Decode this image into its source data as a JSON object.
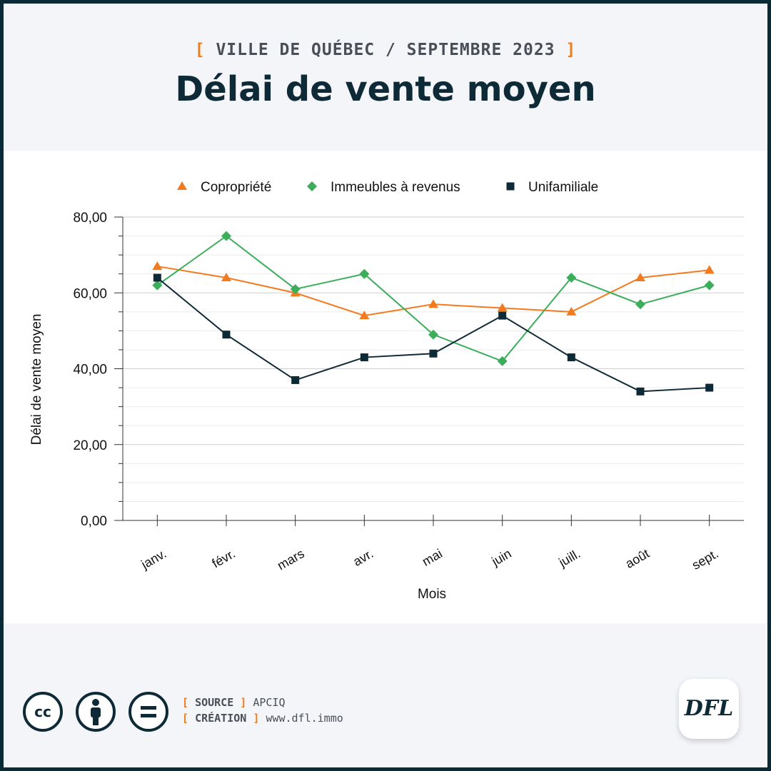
{
  "header": {
    "kicker_open": "[",
    "kicker_text": "VILLE DE QUÉBEC / SEPTEMBRE 2023",
    "kicker_close": "]",
    "title": "Délai de vente moyen"
  },
  "colors": {
    "accent": "#ee7d1c",
    "dark": "#0d2a36",
    "copropriete": "#f47a1f",
    "immeubles": "#3cae5a",
    "unifamiliale": "#0d2a36"
  },
  "chart_data": {
    "type": "line",
    "categories": [
      "janv.",
      "févr.",
      "mars",
      "avr.",
      "mai",
      "juin",
      "juill.",
      "août",
      "sept."
    ],
    "series": [
      {
        "name": "Copropriété",
        "marker": "triangle",
        "color": "#f47a1f",
        "values": [
          67,
          64,
          60,
          54,
          57,
          56,
          55,
          64,
          66
        ]
      },
      {
        "name": "Immeubles à revenus",
        "marker": "diamond",
        "color": "#3cae5a",
        "values": [
          62,
          75,
          61,
          65,
          49,
          42,
          64,
          57,
          62
        ]
      },
      {
        "name": "Unifamiliale",
        "marker": "square",
        "color": "#0d2a36",
        "values": [
          64,
          49,
          37,
          43,
          44,
          54,
          43,
          34,
          35
        ]
      }
    ],
    "xlabel": "Mois",
    "ylabel": "Délai de vente moyen",
    "ylim": [
      0,
      80
    ],
    "yticks": [
      "0,00",
      "20,00",
      "40,00",
      "60,00",
      "80,00"
    ],
    "grid": true,
    "legend_position": "top-center"
  },
  "footer": {
    "license_icons": [
      "cc-icon",
      "by-person-icon",
      "nd-equals-icon"
    ],
    "source_label": "SOURCE",
    "source_value": "APCIQ",
    "creation_label": "CRÉATION",
    "creation_value": "www.dfl.immo",
    "bracket_open": "[",
    "bracket_close": "]",
    "logo_text": "DFL"
  }
}
